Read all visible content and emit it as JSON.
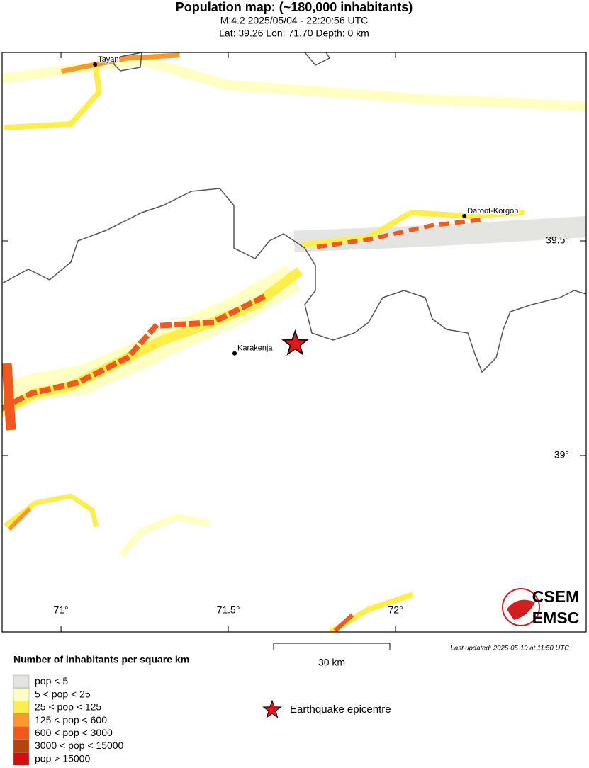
{
  "map": {
    "title": "Population map: (~180,000 inhabitants)",
    "subtitle_lines": [
      "M:4.2 2025/05/04 - 22:20:56 UTC",
      "Lat: 39.26 Lon: 71.70 Depth: 0 km"
    ],
    "lonlim": [
      70.824,
      72.57
    ],
    "latlim": [
      38.589,
      39.939
    ],
    "lonticks": [
      {
        "value": 71,
        "label": "71°"
      },
      {
        "value": 71.5,
        "label": "71.5°"
      },
      {
        "value": 72,
        "label": "72°"
      }
    ],
    "latticks": [
      {
        "value": 39,
        "label": "39°"
      },
      {
        "value": 39.5,
        "label": "39.5°"
      }
    ],
    "cities": [
      {
        "name": "Tayan",
        "lon": 71.102,
        "lat": 39.911
      },
      {
        "name": "Daroot-Korgon",
        "lon": 72.206,
        "lat": 39.558
      },
      {
        "name": "Karakenja",
        "lon": 71.519,
        "lat": 39.238
      }
    ],
    "epicentre": {
      "lon": 71.7,
      "lat": 39.26,
      "color": "#e8141b",
      "label": "Earthquake epicentre"
    },
    "scale_bar": "30 km",
    "last_updated": "Last updated: 2025-05-19 at 11:50 UTC",
    "legend": {
      "title": "Number of inhabitants per square km",
      "entries": [
        {
          "label": "pop < 5",
          "color": "#e4e4e0"
        },
        {
          "label": "5 < pop < 25",
          "color": "#ffffc4"
        },
        {
          "label": "25 < pop < 125",
          "color": "#fdee4c"
        },
        {
          "label": "125 < pop < 600",
          "color": "#fb9a2c"
        },
        {
          "label": "600 < pop < 3000",
          "color": "#f0581e"
        },
        {
          "label": "3000 < pop < 15000",
          "color": "#b3440e"
        },
        {
          "label": "pop > 15000",
          "color": "#d50d0d"
        }
      ]
    },
    "logo": [
      "CSEM",
      "EMSC"
    ]
  }
}
